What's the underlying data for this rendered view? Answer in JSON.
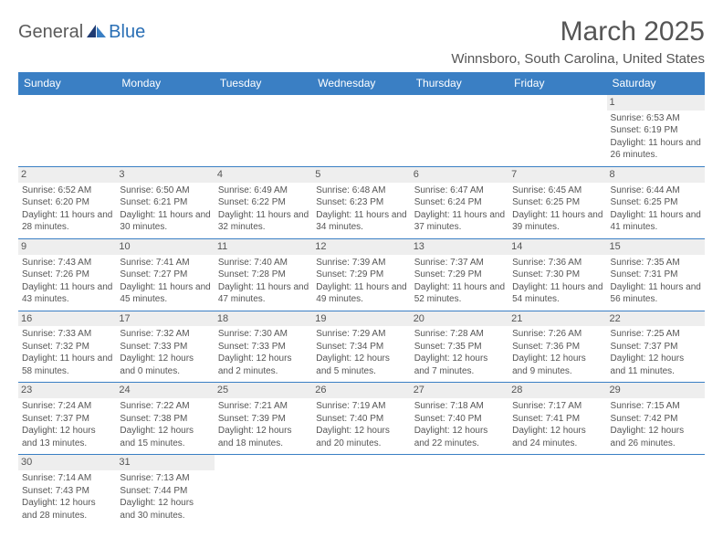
{
  "logo": {
    "text1": "General",
    "text2": "Blue"
  },
  "title": "March 2025",
  "location": "Winnsboro, South Carolina, United States",
  "header_color": "#3a7fc4",
  "day_headers": [
    "Sunday",
    "Monday",
    "Tuesday",
    "Wednesday",
    "Thursday",
    "Friday",
    "Saturday"
  ],
  "weeks": [
    [
      null,
      null,
      null,
      null,
      null,
      null,
      {
        "n": "1",
        "sr": "Sunrise: 6:53 AM",
        "ss": "Sunset: 6:19 PM",
        "dl": "Daylight: 11 hours and 26 minutes."
      }
    ],
    [
      {
        "n": "2",
        "sr": "Sunrise: 6:52 AM",
        "ss": "Sunset: 6:20 PM",
        "dl": "Daylight: 11 hours and 28 minutes."
      },
      {
        "n": "3",
        "sr": "Sunrise: 6:50 AM",
        "ss": "Sunset: 6:21 PM",
        "dl": "Daylight: 11 hours and 30 minutes."
      },
      {
        "n": "4",
        "sr": "Sunrise: 6:49 AM",
        "ss": "Sunset: 6:22 PM",
        "dl": "Daylight: 11 hours and 32 minutes."
      },
      {
        "n": "5",
        "sr": "Sunrise: 6:48 AM",
        "ss": "Sunset: 6:23 PM",
        "dl": "Daylight: 11 hours and 34 minutes."
      },
      {
        "n": "6",
        "sr": "Sunrise: 6:47 AM",
        "ss": "Sunset: 6:24 PM",
        "dl": "Daylight: 11 hours and 37 minutes."
      },
      {
        "n": "7",
        "sr": "Sunrise: 6:45 AM",
        "ss": "Sunset: 6:25 PM",
        "dl": "Daylight: 11 hours and 39 minutes."
      },
      {
        "n": "8",
        "sr": "Sunrise: 6:44 AM",
        "ss": "Sunset: 6:25 PM",
        "dl": "Daylight: 11 hours and 41 minutes."
      }
    ],
    [
      {
        "n": "9",
        "sr": "Sunrise: 7:43 AM",
        "ss": "Sunset: 7:26 PM",
        "dl": "Daylight: 11 hours and 43 minutes."
      },
      {
        "n": "10",
        "sr": "Sunrise: 7:41 AM",
        "ss": "Sunset: 7:27 PM",
        "dl": "Daylight: 11 hours and 45 minutes."
      },
      {
        "n": "11",
        "sr": "Sunrise: 7:40 AM",
        "ss": "Sunset: 7:28 PM",
        "dl": "Daylight: 11 hours and 47 minutes."
      },
      {
        "n": "12",
        "sr": "Sunrise: 7:39 AM",
        "ss": "Sunset: 7:29 PM",
        "dl": "Daylight: 11 hours and 49 minutes."
      },
      {
        "n": "13",
        "sr": "Sunrise: 7:37 AM",
        "ss": "Sunset: 7:29 PM",
        "dl": "Daylight: 11 hours and 52 minutes."
      },
      {
        "n": "14",
        "sr": "Sunrise: 7:36 AM",
        "ss": "Sunset: 7:30 PM",
        "dl": "Daylight: 11 hours and 54 minutes."
      },
      {
        "n": "15",
        "sr": "Sunrise: 7:35 AM",
        "ss": "Sunset: 7:31 PM",
        "dl": "Daylight: 11 hours and 56 minutes."
      }
    ],
    [
      {
        "n": "16",
        "sr": "Sunrise: 7:33 AM",
        "ss": "Sunset: 7:32 PM",
        "dl": "Daylight: 11 hours and 58 minutes."
      },
      {
        "n": "17",
        "sr": "Sunrise: 7:32 AM",
        "ss": "Sunset: 7:33 PM",
        "dl": "Daylight: 12 hours and 0 minutes."
      },
      {
        "n": "18",
        "sr": "Sunrise: 7:30 AM",
        "ss": "Sunset: 7:33 PM",
        "dl": "Daylight: 12 hours and 2 minutes."
      },
      {
        "n": "19",
        "sr": "Sunrise: 7:29 AM",
        "ss": "Sunset: 7:34 PM",
        "dl": "Daylight: 12 hours and 5 minutes."
      },
      {
        "n": "20",
        "sr": "Sunrise: 7:28 AM",
        "ss": "Sunset: 7:35 PM",
        "dl": "Daylight: 12 hours and 7 minutes."
      },
      {
        "n": "21",
        "sr": "Sunrise: 7:26 AM",
        "ss": "Sunset: 7:36 PM",
        "dl": "Daylight: 12 hours and 9 minutes."
      },
      {
        "n": "22",
        "sr": "Sunrise: 7:25 AM",
        "ss": "Sunset: 7:37 PM",
        "dl": "Daylight: 12 hours and 11 minutes."
      }
    ],
    [
      {
        "n": "23",
        "sr": "Sunrise: 7:24 AM",
        "ss": "Sunset: 7:37 PM",
        "dl": "Daylight: 12 hours and 13 minutes."
      },
      {
        "n": "24",
        "sr": "Sunrise: 7:22 AM",
        "ss": "Sunset: 7:38 PM",
        "dl": "Daylight: 12 hours and 15 minutes."
      },
      {
        "n": "25",
        "sr": "Sunrise: 7:21 AM",
        "ss": "Sunset: 7:39 PM",
        "dl": "Daylight: 12 hours and 18 minutes."
      },
      {
        "n": "26",
        "sr": "Sunrise: 7:19 AM",
        "ss": "Sunset: 7:40 PM",
        "dl": "Daylight: 12 hours and 20 minutes."
      },
      {
        "n": "27",
        "sr": "Sunrise: 7:18 AM",
        "ss": "Sunset: 7:40 PM",
        "dl": "Daylight: 12 hours and 22 minutes."
      },
      {
        "n": "28",
        "sr": "Sunrise: 7:17 AM",
        "ss": "Sunset: 7:41 PM",
        "dl": "Daylight: 12 hours and 24 minutes."
      },
      {
        "n": "29",
        "sr": "Sunrise: 7:15 AM",
        "ss": "Sunset: 7:42 PM",
        "dl": "Daylight: 12 hours and 26 minutes."
      }
    ],
    [
      {
        "n": "30",
        "sr": "Sunrise: 7:14 AM",
        "ss": "Sunset: 7:43 PM",
        "dl": "Daylight: 12 hours and 28 minutes."
      },
      {
        "n": "31",
        "sr": "Sunrise: 7:13 AM",
        "ss": "Sunset: 7:44 PM",
        "dl": "Daylight: 12 hours and 30 minutes."
      },
      null,
      null,
      null,
      null,
      null
    ]
  ]
}
